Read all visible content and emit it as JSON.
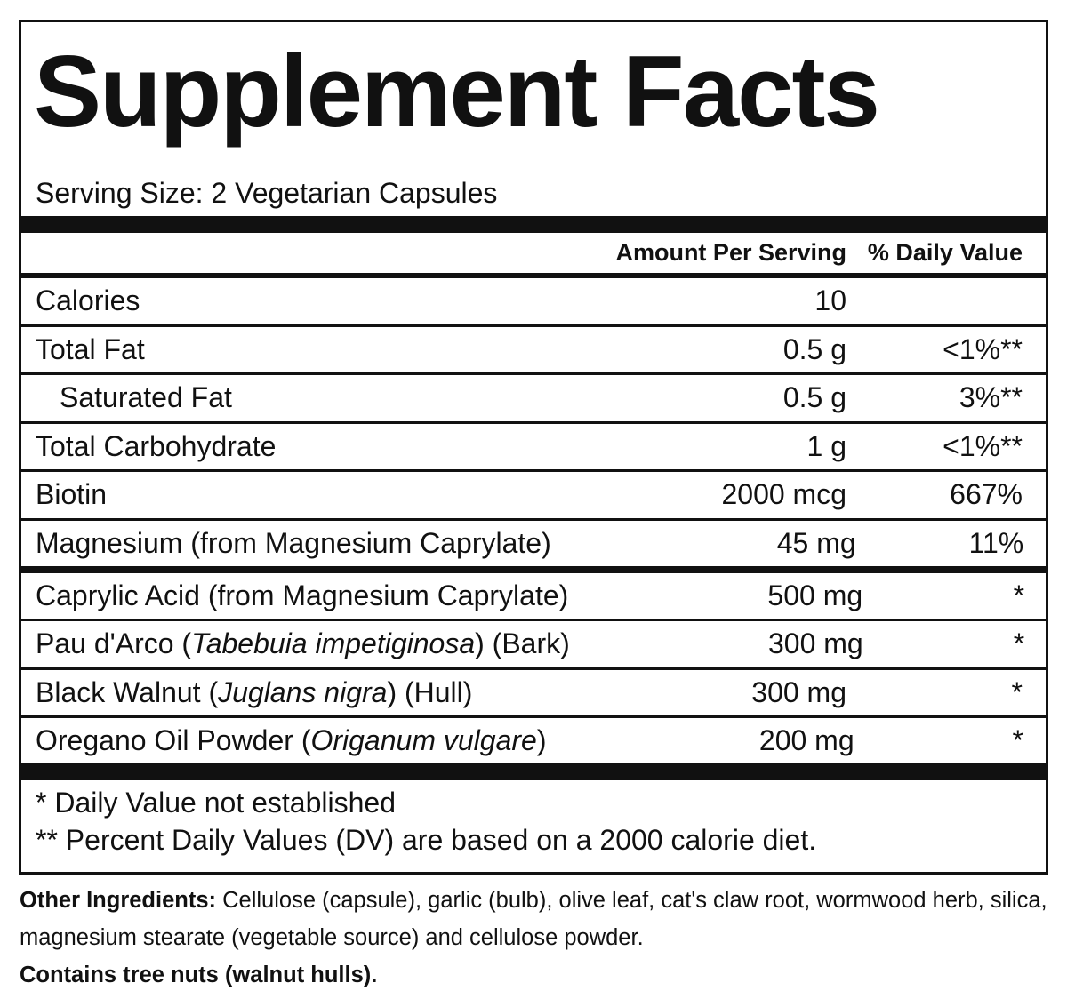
{
  "header": {
    "title": "Supplement Facts",
    "serving_size": "Serving Size: 2 Vegetarian Capsules"
  },
  "table": {
    "columns": [
      "Amount Per Serving",
      "% Daily Value"
    ],
    "nutrient_rows": [
      {
        "name": "Calories",
        "amount": "10"
      },
      {
        "name": "Total Fat",
        "amount": "0.5 g",
        "daily_value": "<1%**"
      },
      {
        "name": "Saturated Fat",
        "amount": "0.5 g",
        "daily_value": "3%**",
        "indent": true
      },
      {
        "name": "Total Carbohydrate",
        "amount": "1 g",
        "daily_value": "<1%**"
      },
      {
        "name": "Biotin",
        "amount": "2000 mcg",
        "daily_value": "667%"
      },
      {
        "name": "Magnesium (from Magnesium Caprylate)",
        "amount": "45 mg",
        "daily_value": "11%"
      }
    ],
    "ingredient_rows": [
      {
        "name": "Caprylic Acid (from Magnesium Caprylate)",
        "amount": "500 mg",
        "daily_value": "*"
      },
      {
        "name_parts": [
          {
            "text": "Pau d'Arco ("
          },
          {
            "text": "Tabebuia impetiginosa",
            "italic": true
          },
          {
            "text": ") (Bark)"
          }
        ],
        "amount": "300 mg",
        "daily_value": "*"
      },
      {
        "name_parts": [
          {
            "text": "Black Walnut ("
          },
          {
            "text": "Juglans nigra",
            "italic": true
          },
          {
            "text": ") (Hull)"
          }
        ],
        "amount": "300 mg",
        "daily_value": "*"
      },
      {
        "name_parts": [
          {
            "text": "Oregano Oil Powder ("
          },
          {
            "text": "Origanum vulgare",
            "italic": true
          },
          {
            "text": ")"
          }
        ],
        "amount": "200 mg",
        "daily_value": "*"
      }
    ]
  },
  "footnotes": [
    "* Daily Value not established",
    "** Percent Daily Values (DV) are based on a 2000 calorie diet."
  ],
  "other_ingredients": {
    "label": "Other Ingredients:",
    "text": "Cellulose (capsule), garlic (bulb), olive leaf, cat's claw root, wormwood herb, silica, magnesium stearate (vegetable source) and cellulose powder.",
    "allergen": "Contains tree nuts (walnut hulls)."
  }
}
